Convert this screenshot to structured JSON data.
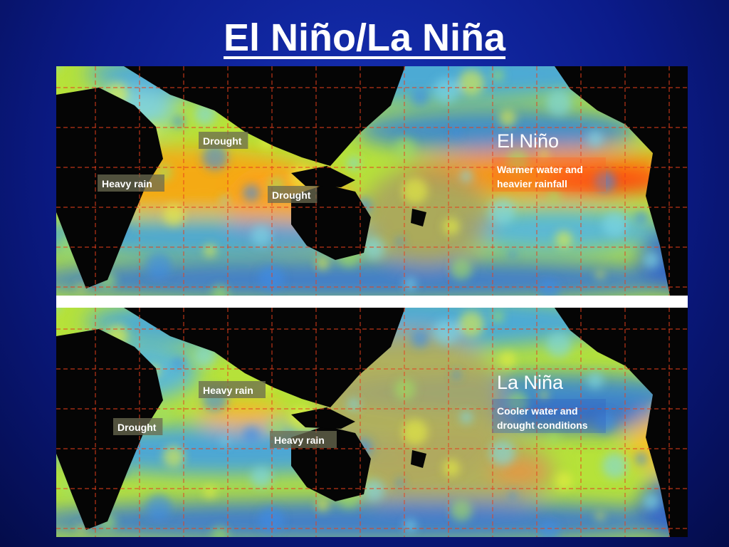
{
  "title": "El Niño/La Niña",
  "panels": [
    {
      "heading": "El Niño",
      "caption": [
        "Warmer water and",
        "heavier rainfall"
      ],
      "labels": [
        "Drought",
        "Heavy rain",
        "Drought"
      ]
    },
    {
      "heading": "La Niña",
      "caption": [
        "Cooler water and",
        "drought conditions"
      ],
      "labels": [
        "Heavy rain",
        "Drought",
        "Heavy rain"
      ]
    }
  ]
}
